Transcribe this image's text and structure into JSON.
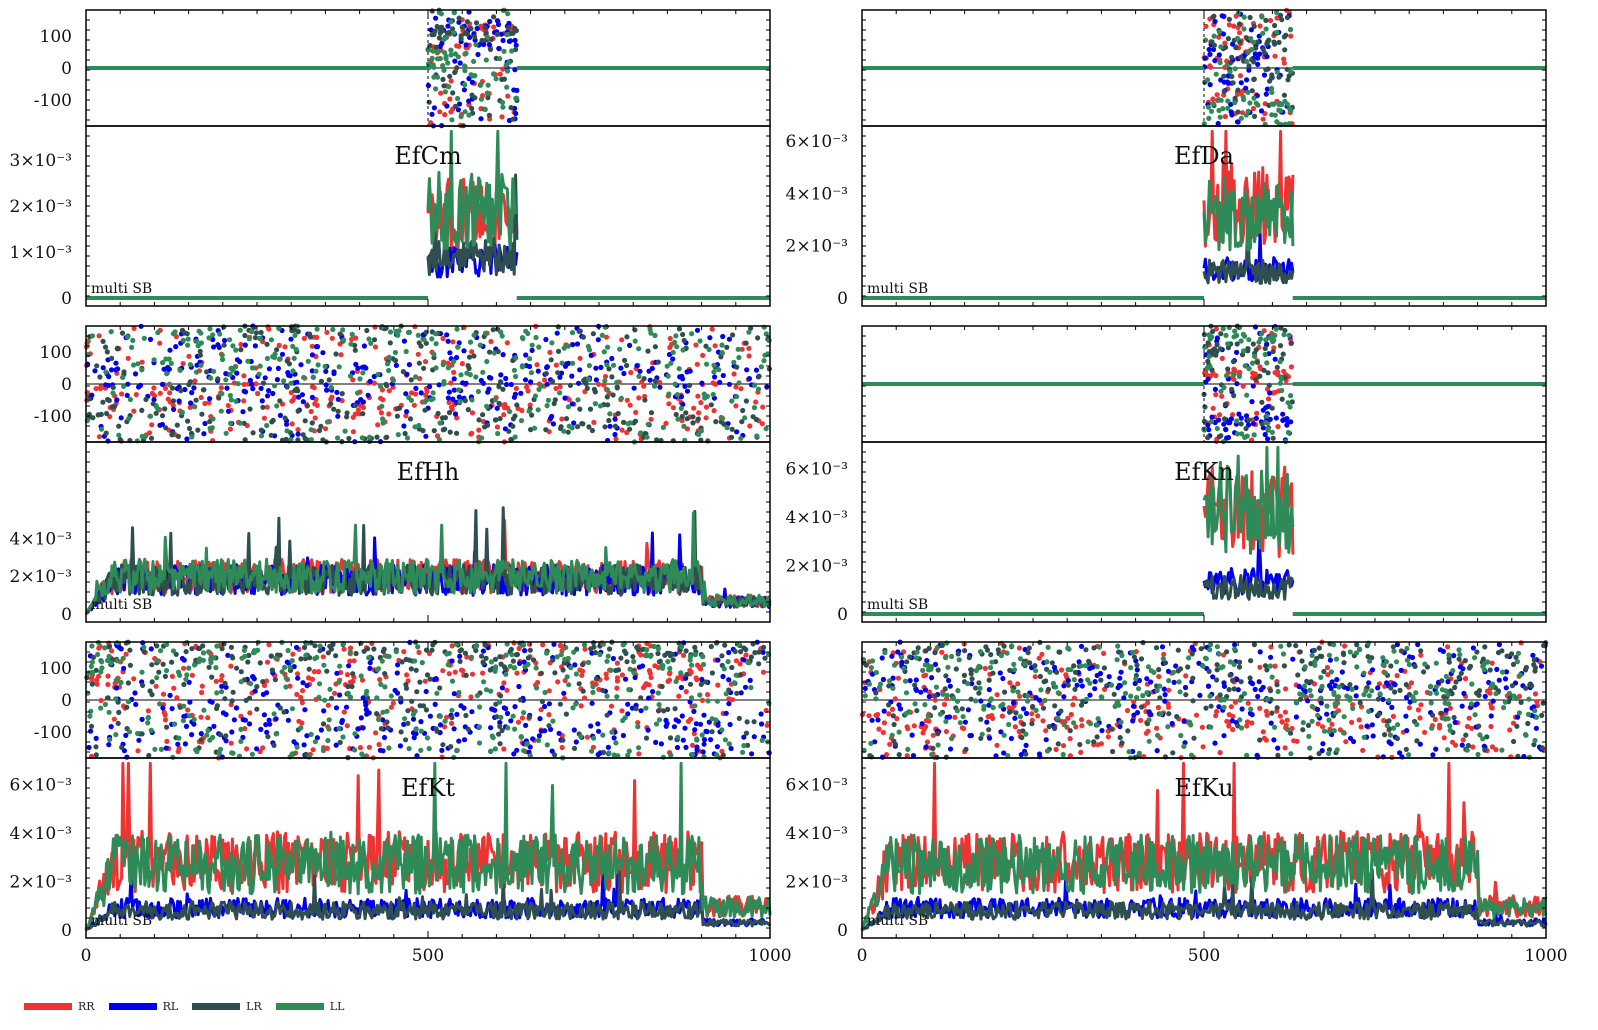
{
  "colors": {
    "RR": "#ee3333",
    "RL": "#0000ee",
    "LR": "#2f4f4f",
    "LL": "#2e8b57"
  },
  "legend": [
    {
      "key": "RR",
      "label": "RR"
    },
    {
      "key": "RL",
      "label": "RL"
    },
    {
      "key": "LR",
      "label": "LR"
    },
    {
      "key": "LL",
      "label": "LL"
    }
  ],
  "chart_data": [
    {
      "title": "EfCm",
      "type": "line",
      "annotation": "multi SB",
      "active_range": [
        500,
        630
      ],
      "phase_mode": "sparse",
      "amp_ylim": [
        0,
        0.0037
      ],
      "amp_ticks": [
        "0",
        "1×10⁻³",
        "2×10⁻³",
        "3×10⁻³"
      ],
      "phase_ylim": [
        -180,
        180
      ],
      "phase_ticks": [
        "-100",
        "0",
        "100"
      ],
      "amp_levels": {
        "RR": 0.0018,
        "RL": 0.0008,
        "LR": 0.0009,
        "LL": 0.0019
      },
      "xlim": [
        0,
        1000
      ],
      "xticks": [
        "0",
        "500",
        "1000"
      ]
    },
    {
      "title": "EfDa",
      "type": "line",
      "annotation": "multi SB",
      "active_range": [
        500,
        630
      ],
      "phase_mode": "sparse",
      "amp_ylim": [
        0,
        0.0065
      ],
      "amp_ticks": [
        "0",
        "2×10⁻³",
        "4×10⁻³",
        "6×10⁻³"
      ],
      "phase_ylim": [
        -180,
        180
      ],
      "phase_ticks": [],
      "amp_levels": {
        "RR": 0.0036,
        "RL": 0.0011,
        "LR": 0.001,
        "LL": 0.0032
      },
      "xlim": [
        0,
        1000
      ],
      "xticks": [
        "0",
        "500",
        "1000"
      ]
    },
    {
      "title": "EfHh",
      "type": "line",
      "annotation": "multi SB",
      "active_range": [
        0,
        1000
      ],
      "phase_mode": "dense",
      "amp_ylim": [
        0,
        0.0045
      ],
      "amp_ticks": [
        "0",
        "2×10⁻³",
        "4×10⁻³"
      ],
      "phase_ylim": [
        -180,
        180
      ],
      "phase_ticks": [
        "-100",
        "0",
        "100"
      ],
      "amp_levels": {
        "RR": 0.001,
        "RL": 0.0009,
        "LR": 0.0009,
        "LL": 0.001
      },
      "xlim": [
        0,
        1000
      ],
      "xticks": [
        "0",
        "500",
        "1000"
      ]
    },
    {
      "title": "EfKn",
      "type": "line",
      "annotation": "multi SB",
      "active_range": [
        500,
        630
      ],
      "phase_mode": "sparse",
      "amp_ylim": [
        0,
        0.007
      ],
      "amp_ticks": [
        "0",
        "2×10⁻³",
        "4×10⁻³",
        "6×10⁻³"
      ],
      "phase_ylim": [
        -180,
        180
      ],
      "phase_ticks": [],
      "amp_levels": {
        "RR": 0.0042,
        "RL": 0.0013,
        "LR": 0.0011,
        "LL": 0.0045
      },
      "xlim": [
        0,
        1000
      ],
      "xticks": [
        "0",
        "500",
        "1000"
      ]
    },
    {
      "title": "EfKt",
      "type": "line",
      "annotation": "multi SB",
      "active_range": [
        0,
        1000
      ],
      "phase_mode": "dense",
      "amp_ylim": [
        0,
        0.007
      ],
      "amp_ticks": [
        "0",
        "2×10⁻³",
        "4×10⁻³",
        "6×10⁻³"
      ],
      "phase_ylim": [
        -180,
        180
      ],
      "phase_ticks": [
        "-100",
        "0",
        "100"
      ],
      "amp_levels": {
        "RR": 0.0028,
        "RL": 0.0009,
        "LR": 0.0008,
        "LL": 0.0027
      },
      "xlim": [
        0,
        1000
      ],
      "xticks": [
        "0",
        "500",
        "1000"
      ]
    },
    {
      "title": "EfKu",
      "type": "line",
      "annotation": "multi SB",
      "active_range": [
        0,
        1000
      ],
      "phase_mode": "dense",
      "amp_ylim": [
        0,
        0.007
      ],
      "amp_ticks": [
        "0",
        "2×10⁻³",
        "4×10⁻³",
        "6×10⁻³"
      ],
      "phase_ylim": [
        -180,
        180
      ],
      "phase_ticks": [],
      "amp_levels": {
        "RR": 0.0028,
        "RL": 0.0009,
        "LR": 0.0008,
        "LL": 0.0027
      },
      "xlim": [
        0,
        1000
      ],
      "xticks": [
        "0",
        "500",
        "1000"
      ]
    }
  ]
}
